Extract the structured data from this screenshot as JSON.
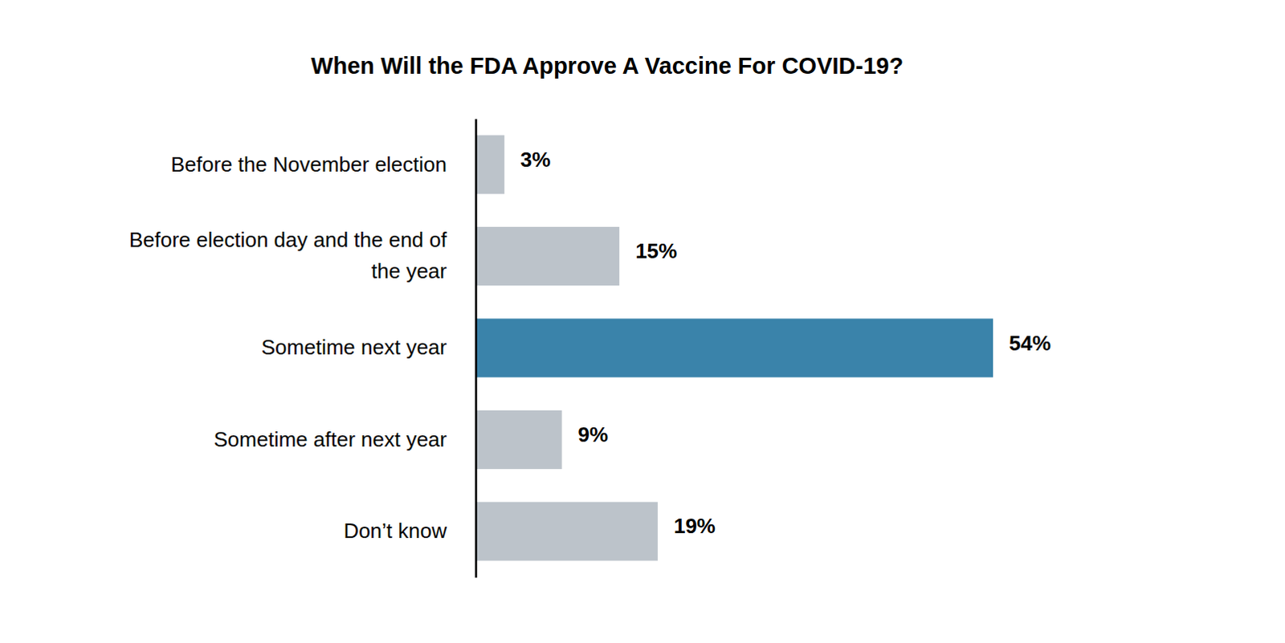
{
  "chart_data": {
    "type": "bar",
    "orientation": "horizontal",
    "title": "When Will the FDA Approve A Vaccine For COVID-19?",
    "categories": [
      "Before the November election",
      "Before election day and the end of the year",
      "Sometime next year",
      "Sometime after next year",
      "Don’t know"
    ],
    "values": [
      3,
      15,
      54,
      9,
      19
    ],
    "value_labels": [
      "3%",
      "15%",
      "54%",
      "9%",
      "19%"
    ],
    "colors": [
      "#bcc3ca",
      "#bcc3ca",
      "#3a83aa",
      "#bcc3ca",
      "#bcc3ca"
    ],
    "xlim": [
      0,
      54
    ],
    "data_labels": true,
    "tick_labels": "y",
    "grid": false
  }
}
